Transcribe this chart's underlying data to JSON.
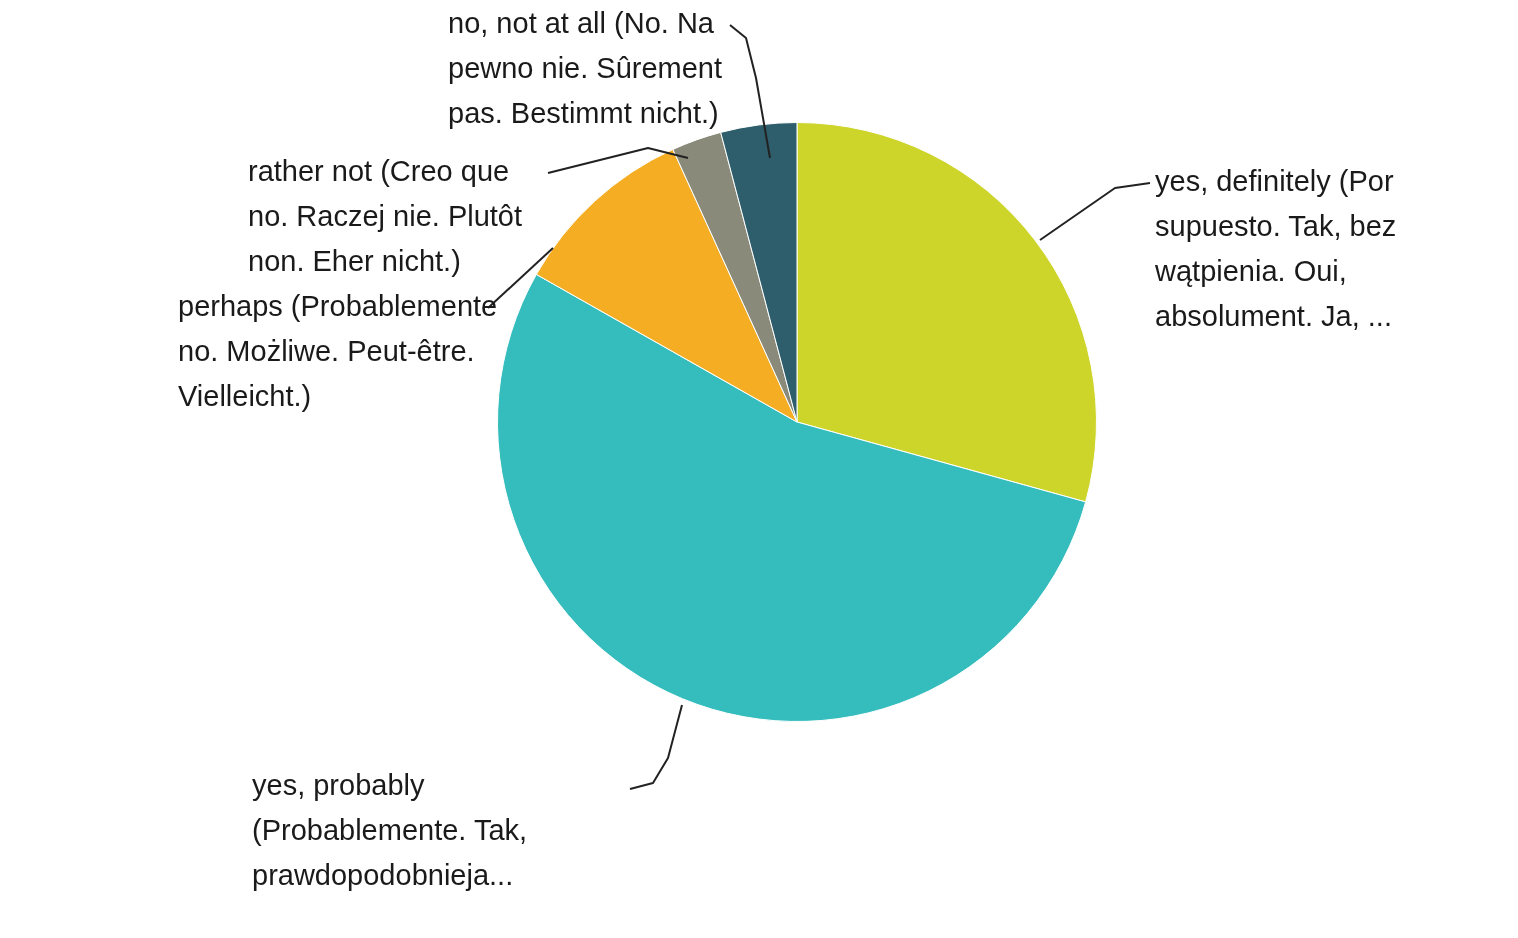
{
  "chart_data": {
    "type": "pie",
    "categories": [
      "yes, definitely (Por supuesto. Tak, bez wątpienia. Oui, absolument. Ja, ...",
      "yes, probably (Probablemente. Tak, prawdopodobnieja...",
      "perhaps (Probablemente no. Możliwe. Peut-être. Vielleicht.)",
      "rather not (Creo que no. Raczej nie. Plutôt non. Eher nicht.)",
      "no, not at all (No. Na pewno nie. Sûrement pas. Bestimmt nicht.)"
    ],
    "values": [
      29.3,
      53.9,
      10,
      2.7,
      4.1
    ],
    "colors": [
      "#cdd42a",
      "#35bdbe",
      "#f5ad23",
      "#8a8a7a",
      "#2e5e6b"
    ]
  }
}
